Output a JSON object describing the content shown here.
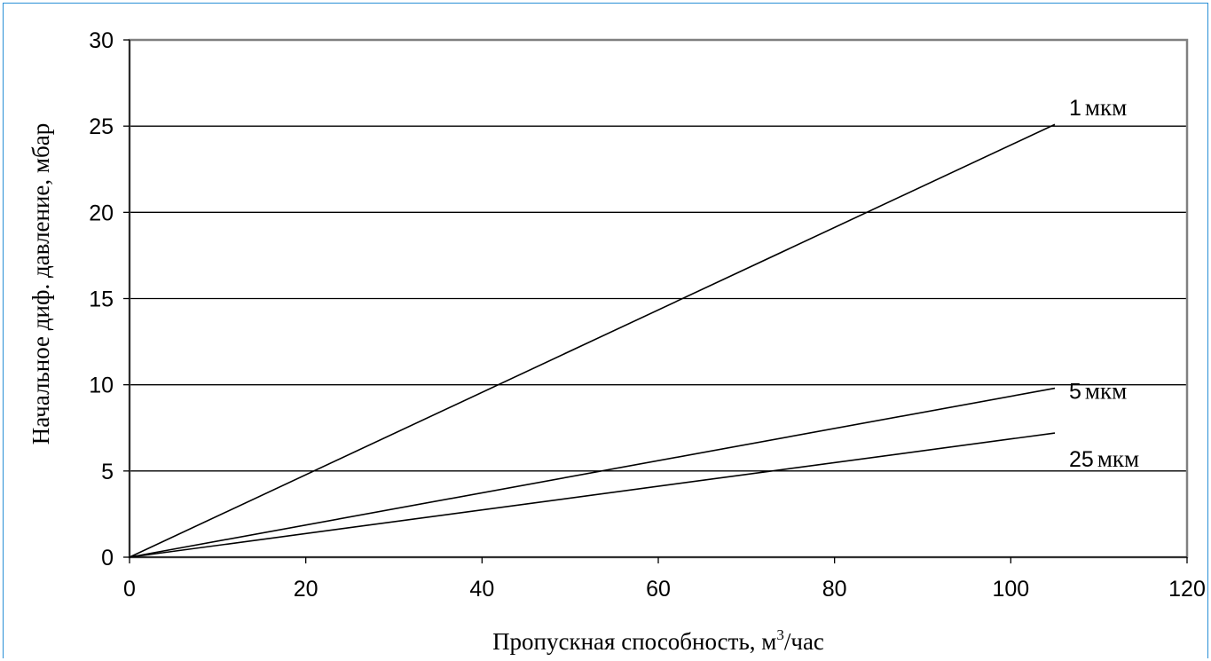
{
  "colors": {
    "frame": "#2a8fd6",
    "axis": "#808080",
    "grid": "#000000",
    "series": "#000000",
    "background": "#ffffff"
  },
  "chart_data": {
    "type": "line",
    "title": "",
    "xlabel_main": "Пропускная способность, м",
    "xlabel_sup": "3",
    "xlabel_tail": "/час",
    "ylabel": "Начальное диф. давление, мбар",
    "xlim": [
      0,
      120
    ],
    "ylim": [
      0,
      30
    ],
    "xticks": [
      "0",
      "20",
      "40",
      "60",
      "80",
      "100",
      "120"
    ],
    "yticks": [
      "0",
      "5",
      "10",
      "15",
      "20",
      "25",
      "30"
    ],
    "grid": "horizontal",
    "series": [
      {
        "name": "1",
        "unit": "мкм",
        "x": [
          0,
          105
        ],
        "y": [
          0,
          25.1
        ]
      },
      {
        "name": "5",
        "unit": "мкм",
        "x": [
          0,
          105
        ],
        "y": [
          0,
          9.8
        ]
      },
      {
        "name": "25",
        "unit": "мкм",
        "x": [
          0,
          105
        ],
        "y": [
          0,
          7.2
        ]
      }
    ]
  }
}
